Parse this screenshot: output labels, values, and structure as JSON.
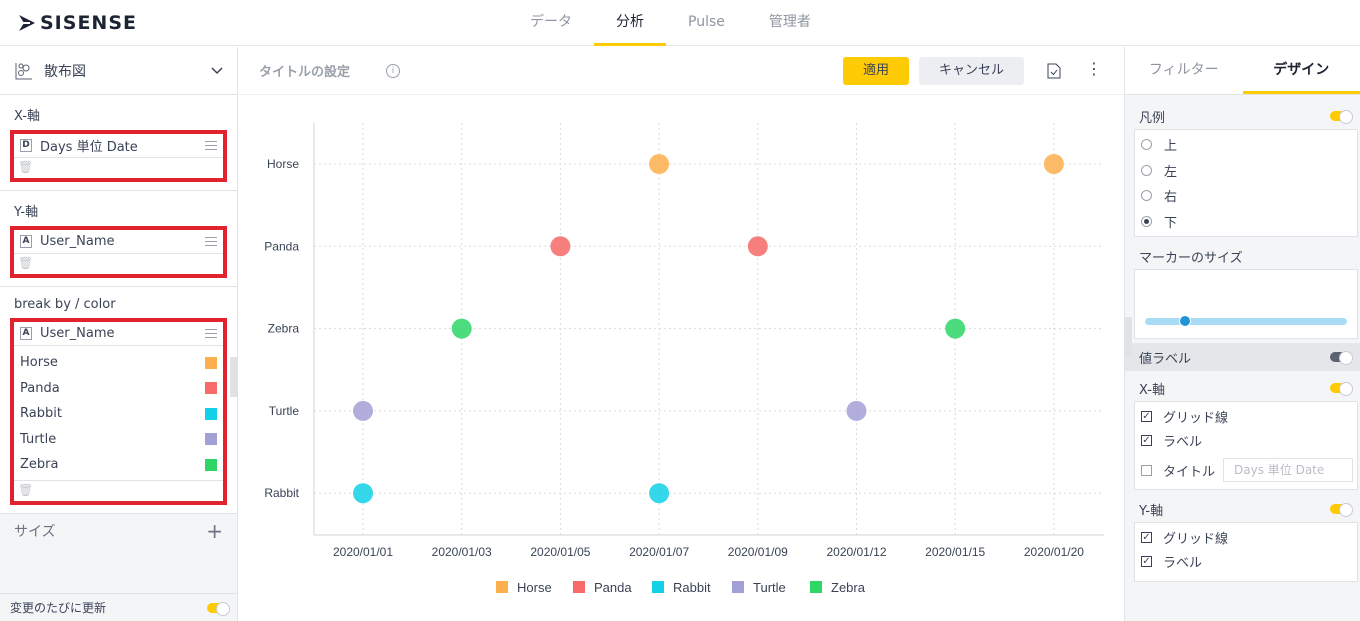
{
  "app": {
    "logo_text": "SISENSE"
  },
  "nav": {
    "tabs": [
      {
        "label": "データ",
        "active": false
      },
      {
        "label": "分析",
        "active": true
      },
      {
        "label": "Pulse",
        "active": false
      },
      {
        "label": "管理者",
        "active": false
      }
    ]
  },
  "left": {
    "chart_type": "散布図",
    "x_axis": {
      "title": "X-軸",
      "field_type": "D",
      "field": "Days 単位 Date"
    },
    "y_axis": {
      "title": "Y-軸",
      "field_type": "A",
      "field": "User_Name"
    },
    "break_by": {
      "title": "break by / color",
      "field_type": "A",
      "field": "User_Name",
      "items": [
        {
          "name": "Horse",
          "color": "#fdaf4d"
        },
        {
          "name": "Panda",
          "color": "#f66a67"
        },
        {
          "name": "Rabbit",
          "color": "#12d0e6"
        },
        {
          "name": "Turtle",
          "color": "#a3a0d6"
        },
        {
          "name": "Zebra",
          "color": "#2dd667"
        }
      ]
    },
    "size_label": "サイズ",
    "auto_update_label": "変更のたびに更新"
  },
  "center": {
    "title_placeholder": "タイトルの設定",
    "apply_label": "適用",
    "cancel_label": "キャンセル"
  },
  "chart_data": {
    "type": "scatter",
    "x_categories": [
      "2020/01/01",
      "2020/01/03",
      "2020/01/05",
      "2020/01/07",
      "2020/01/09",
      "2020/01/12",
      "2020/01/15",
      "2020/01/20"
    ],
    "y_categories": [
      "Horse",
      "Panda",
      "Zebra",
      "Turtle",
      "Rabbit"
    ],
    "series": [
      {
        "name": "Horse",
        "color": "#fdaf4d",
        "points": [
          {
            "x": "2020/01/07",
            "y": "Horse"
          },
          {
            "x": "2020/01/20",
            "y": "Horse"
          }
        ]
      },
      {
        "name": "Panda",
        "color": "#f66a67",
        "points": [
          {
            "x": "2020/01/05",
            "y": "Panda"
          },
          {
            "x": "2020/01/09",
            "y": "Panda"
          }
        ]
      },
      {
        "name": "Rabbit",
        "color": "#12d0e6",
        "points": [
          {
            "x": "2020/01/01",
            "y": "Rabbit"
          },
          {
            "x": "2020/01/07",
            "y": "Rabbit"
          }
        ]
      },
      {
        "name": "Turtle",
        "color": "#a3a0d6",
        "points": [
          {
            "x": "2020/01/01",
            "y": "Turtle"
          },
          {
            "x": "2020/01/12",
            "y": "Turtle"
          }
        ]
      },
      {
        "name": "Zebra",
        "color": "#2dd667",
        "points": [
          {
            "x": "2020/01/03",
            "y": "Zebra"
          },
          {
            "x": "2020/01/15",
            "y": "Zebra"
          }
        ]
      }
    ],
    "legend": [
      "Horse",
      "Panda",
      "Rabbit",
      "Turtle",
      "Zebra"
    ],
    "legend_position": "bottom",
    "grid": true
  },
  "right": {
    "tabs": [
      {
        "label": "フィルター",
        "active": false
      },
      {
        "label": "デザイン",
        "active": true
      }
    ],
    "legend_title": "凡例",
    "legend_options": [
      {
        "label": "上",
        "checked": false
      },
      {
        "label": "左",
        "checked": false
      },
      {
        "label": "右",
        "checked": false
      },
      {
        "label": "下",
        "checked": true
      }
    ],
    "marker_size_title": "マーカーのサイズ",
    "marker_size_value": 0.2,
    "value_labels_title": "値ラベル",
    "x_axis": {
      "title": "X-軸",
      "grid_label": "グリッド線",
      "labels_label": "ラベル",
      "title_label": "タイトル",
      "title_value": "Days 単位 Date"
    },
    "y_axis": {
      "title": "Y-軸",
      "grid_label": "グリッド線",
      "labels_label": "ラベル"
    }
  }
}
